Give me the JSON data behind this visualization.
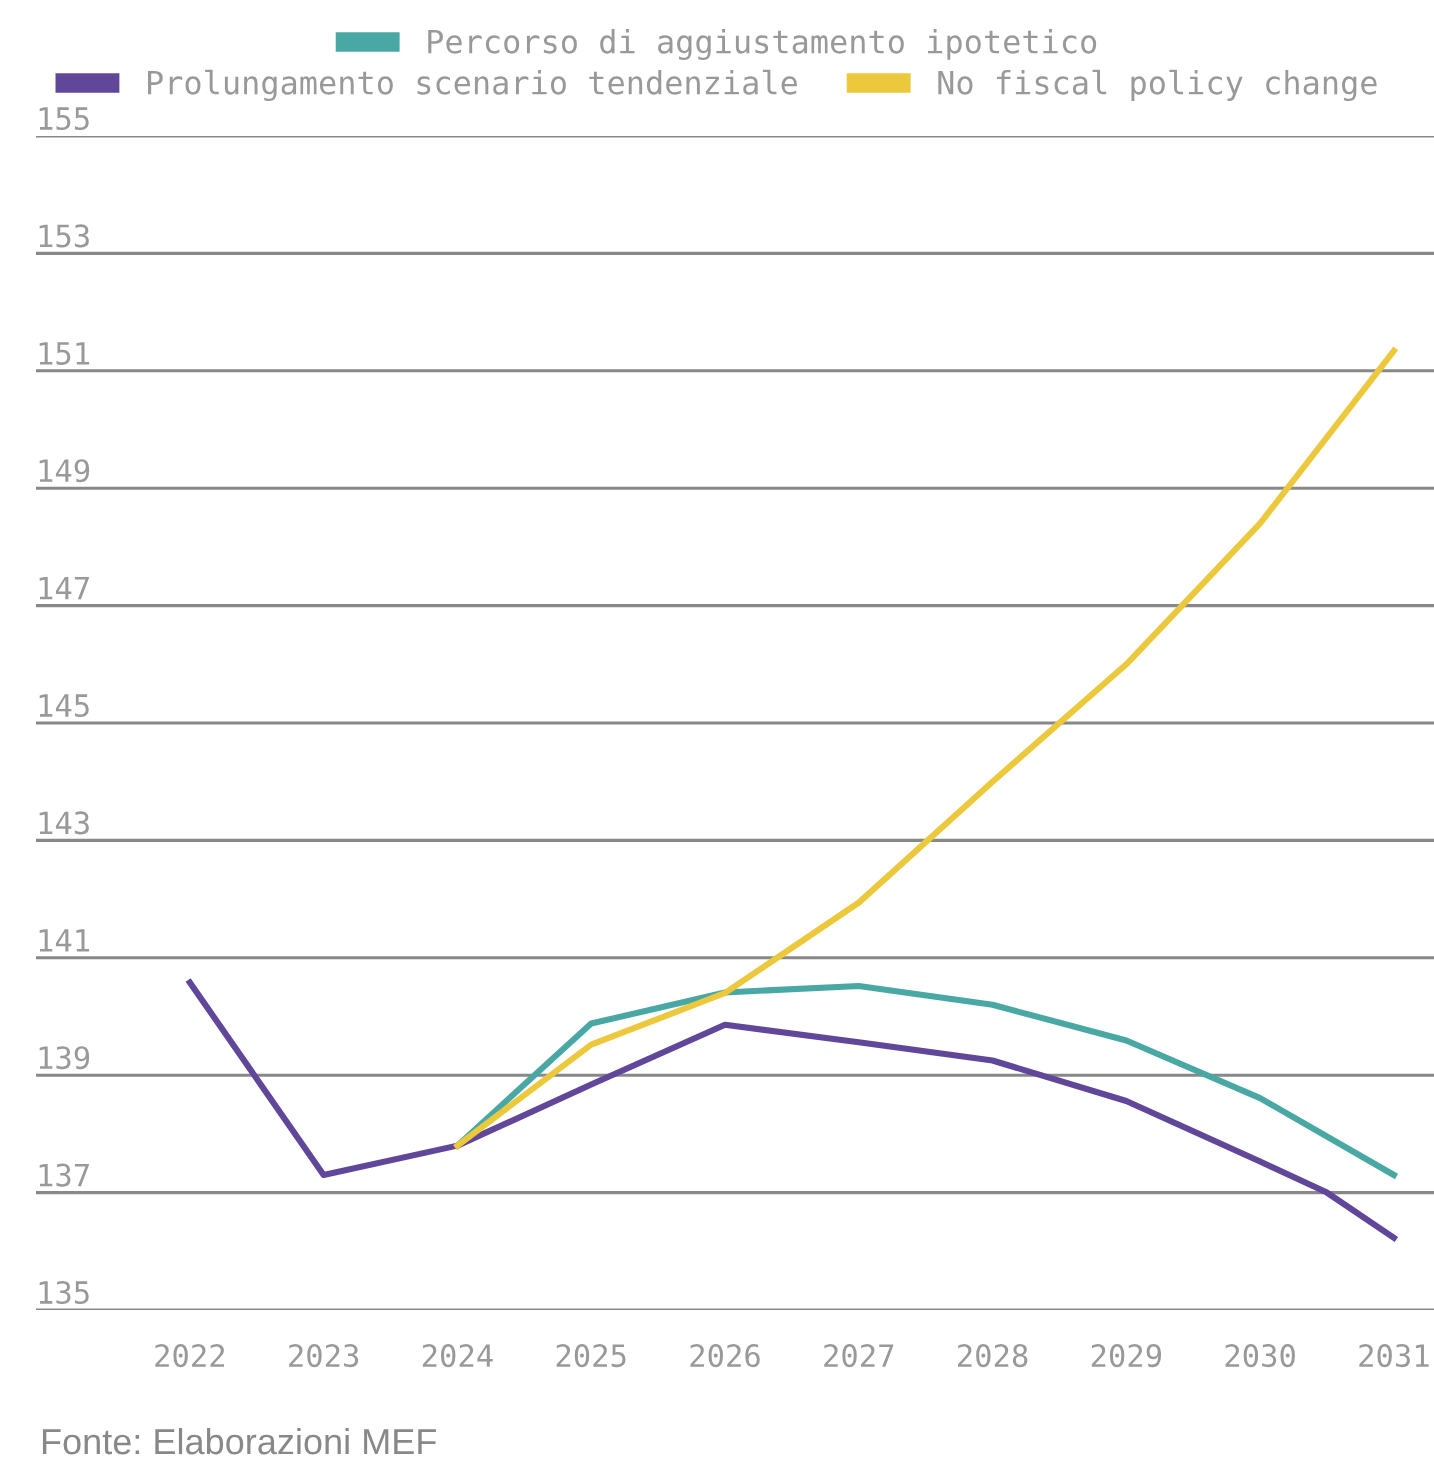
{
  "chart_data": {
    "type": "line",
    "series": [
      {
        "name": "Percorso di aggiustamento ipotetico",
        "color": "#4aa8a4",
        "x": [
          2024,
          2025,
          2026,
          2027,
          2028,
          2029,
          2030,
          2031
        ],
        "values": [
          137.8,
          139.88,
          140.41,
          140.52,
          140.2,
          139.59,
          138.61,
          137.3
        ]
      },
      {
        "name": "Prolungamento scenario tendenziale",
        "color": "#60479a",
        "x": [
          2022,
          2023,
          2024,
          2025,
          2026,
          2027,
          2028,
          2029,
          2030,
          2030.5,
          2031
        ],
        "values": [
          140.58,
          137.3,
          137.8,
          138.84,
          139.86,
          139.56,
          139.25,
          138.56,
          137.53,
          137.0,
          136.23
        ]
      },
      {
        "name": "No fiscal policy change",
        "color": "#ecc83c",
        "x": [
          2024,
          2025,
          2026,
          2027,
          2028,
          2029,
          2030,
          2031
        ],
        "values": [
          137.8,
          139.52,
          140.4,
          141.94,
          144.0,
          146.0,
          148.4,
          151.34
        ]
      }
    ],
    "xlim": [
      2020.85,
      2031.3
    ],
    "xticks": [
      2022,
      2023,
      2024,
      2025,
      2026,
      2027,
      2028,
      2029,
      2030,
      2031
    ],
    "ylim": [
      135,
      155
    ],
    "yticks": [
      135,
      137,
      139,
      141,
      143,
      145,
      147,
      149,
      151,
      153,
      155
    ],
    "grid": "y",
    "legend": "top",
    "marker": "none",
    "line_style": "solid",
    "annotations": [
      "Fonte: Elaborazioni MEF"
    ]
  }
}
